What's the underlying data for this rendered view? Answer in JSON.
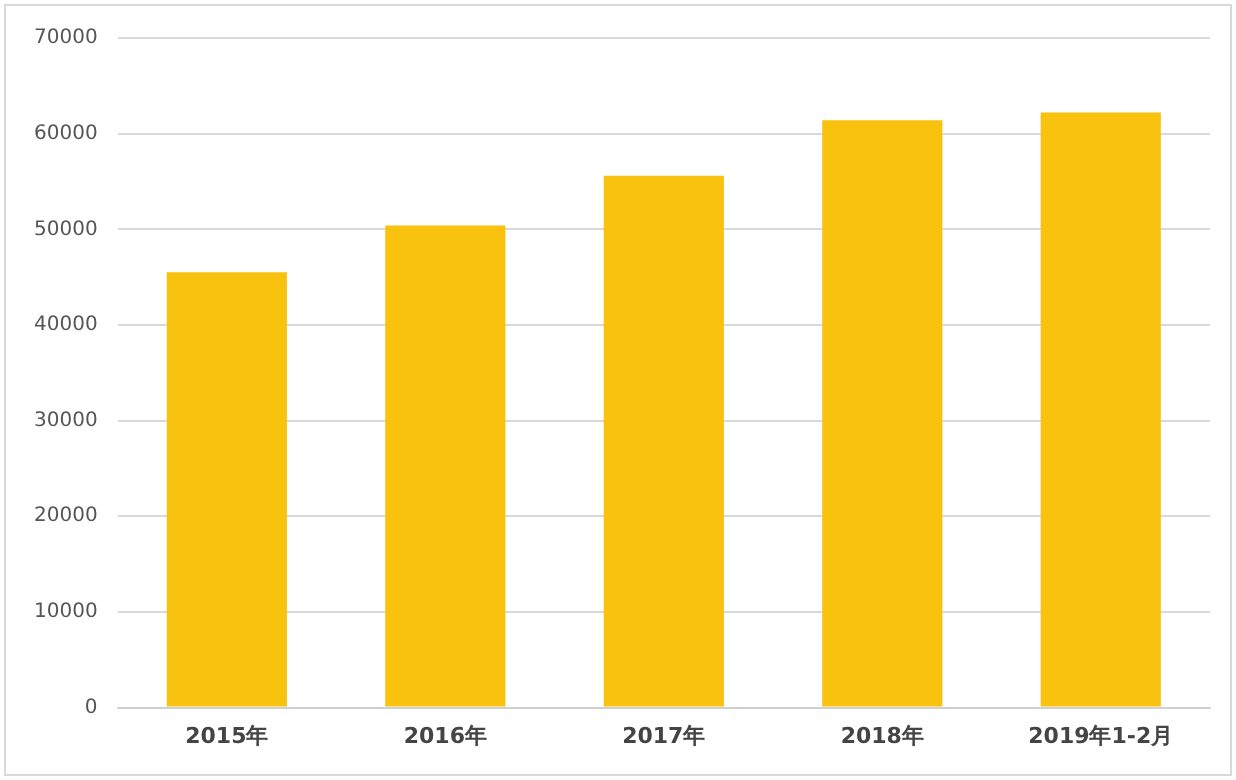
{
  "chart_data": {
    "type": "bar",
    "categories": [
      "2015年",
      "2016年",
      "2017年",
      "2018年",
      "2019年1-2月"
    ],
    "values": [
      45500,
      50400,
      55600,
      61400,
      62200
    ],
    "color": "#f9c20e",
    "ylim": [
      0,
      70000
    ],
    "yticks": [
      0,
      10000,
      20000,
      30000,
      40000,
      50000,
      60000,
      70000
    ],
    "grid": "y",
    "legend": false
  }
}
